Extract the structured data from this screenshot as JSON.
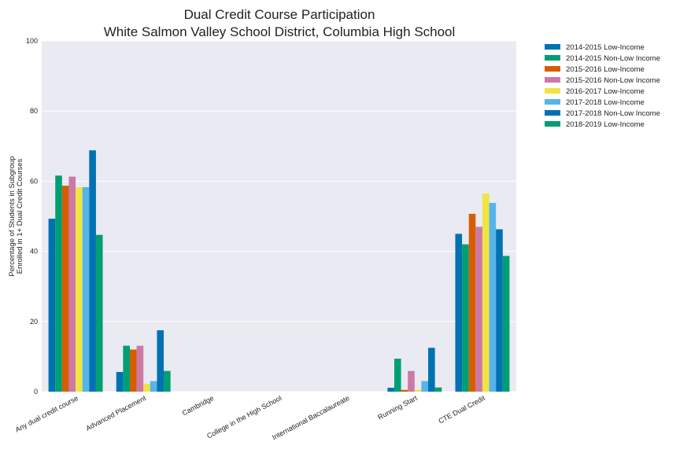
{
  "chart_data": {
    "type": "bar",
    "title": [
      "Dual Credit Course Participation",
      "White Salmon Valley School District, Columbia High School"
    ],
    "ylabel": [
      "Percentage of Students in Subgroup",
      "Enrolled in 1+ Dual Credit Courses"
    ],
    "xlabel": "",
    "ylim": [
      0,
      100
    ],
    "yticks": [
      0,
      20,
      40,
      60,
      80,
      100
    ],
    "grid": true,
    "legend_position": "outside-top-right",
    "categories": [
      "Any dual credit course",
      "Advanced Placement",
      "Cambridge",
      "College in the High School",
      "International Baccalaureate",
      "Running Start",
      "CTE Dual Credit"
    ],
    "series": [
      {
        "name": "2014-2015 Low-Income",
        "color": "#0072b2",
        "values": [
          49.3,
          5.6,
          0,
          0,
          0,
          1.1,
          45.0
        ]
      },
      {
        "name": "2014-2015 Non-Low Income",
        "color": "#009e73",
        "values": [
          61.6,
          13.1,
          0,
          0,
          0,
          9.4,
          42.0
        ]
      },
      {
        "name": "2015-2016 Low-Income",
        "color": "#d55e00",
        "values": [
          58.7,
          12.0,
          0,
          0,
          0,
          0.5,
          50.7
        ]
      },
      {
        "name": "2015-2016 Non-Low Income",
        "color": "#cc79a7",
        "values": [
          61.3,
          13.1,
          0,
          0,
          0,
          5.9,
          47.0
        ]
      },
      {
        "name": "2016-2017 Low-Income",
        "color": "#f0e442",
        "values": [
          58.3,
          2.2,
          0,
          0,
          0,
          0.5,
          56.5
        ]
      },
      {
        "name": "2017-2018 Low-Income",
        "color": "#56b4e9",
        "values": [
          58.3,
          3.0,
          0,
          0,
          0,
          3.0,
          53.8
        ]
      },
      {
        "name": "2017-2018 Non-Low Income",
        "color": "#0072b2",
        "values": [
          68.8,
          17.5,
          0,
          0,
          0,
          12.5,
          46.3
        ]
      },
      {
        "name": "2018-2019 Low-Income",
        "color": "#009e73",
        "values": [
          44.7,
          5.9,
          0,
          0,
          0,
          1.2,
          38.7
        ]
      }
    ],
    "colors": {
      "plot_background": "#eaeaf2",
      "grid": "#ffffff"
    }
  }
}
